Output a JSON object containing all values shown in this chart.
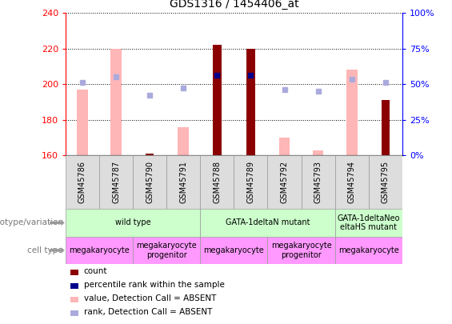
{
  "title": "GDS1316 / 1454406_at",
  "samples": [
    "GSM45786",
    "GSM45787",
    "GSM45790",
    "GSM45791",
    "GSM45788",
    "GSM45789",
    "GSM45792",
    "GSM45793",
    "GSM45794",
    "GSM45795"
  ],
  "count_values": [
    null,
    null,
    161,
    null,
    222,
    220,
    null,
    null,
    null,
    191
  ],
  "count_absent_values": [
    197,
    220,
    null,
    176,
    null,
    null,
    170,
    163,
    208,
    null
  ],
  "percentile_rank": [
    null,
    null,
    null,
    null,
    205,
    205,
    null,
    null,
    null,
    null
  ],
  "percentile_rank_absent": [
    201,
    204,
    194,
    198,
    null,
    null,
    197,
    196,
    203,
    201
  ],
  "ylim": [
    160,
    240
  ],
  "yticks": [
    160,
    180,
    200,
    220,
    240
  ],
  "y2ticks": [
    0,
    25,
    50,
    75,
    100
  ],
  "bar_width": 0.5,
  "count_color": "#8B0000",
  "count_absent_color": "#FFB6B6",
  "rank_color": "#00008B",
  "rank_absent_color": "#AAAADD",
  "genotype_spans": [
    [
      0,
      4,
      "wild type"
    ],
    [
      4,
      8,
      "GATA-1deltaN mutant"
    ],
    [
      8,
      10,
      "GATA-1deltaNeo\neltaHS mutant"
    ]
  ],
  "cell_spans": [
    [
      0,
      2,
      "megakaryocyte"
    ],
    [
      2,
      4,
      "megakaryocyte\nprogenitor"
    ],
    [
      4,
      6,
      "megakaryocyte"
    ],
    [
      6,
      8,
      "megakaryocyte\nprogenitor"
    ],
    [
      8,
      10,
      "megakaryocyte"
    ]
  ],
  "legend_items": [
    [
      "#8B0000",
      "count"
    ],
    [
      "#00008B",
      "percentile rank within the sample"
    ],
    [
      "#FFB6B6",
      "value, Detection Call = ABSENT"
    ],
    [
      "#AAAADD",
      "rank, Detection Call = ABSENT"
    ]
  ]
}
